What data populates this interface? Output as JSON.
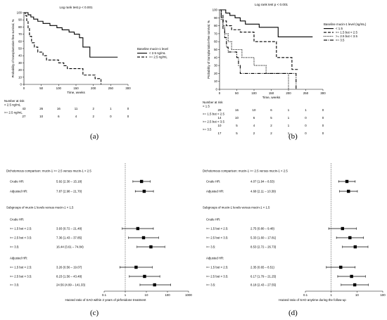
{
  "panels": {
    "a": {
      "label": "(a)",
      "chart_data": {
        "type": "line",
        "title": "Log rank test p < 0.001",
        "xlabel": "Time, weeks",
        "ylabel": "Probability of transplantation-free survival, %",
        "xlim": [
          0,
          300
        ],
        "ylim": [
          0,
          100
        ],
        "xticks": [
          "0",
          "50",
          "100",
          "150",
          "200",
          "250",
          "300"
        ],
        "yticks": [
          "0",
          "10",
          "20",
          "30",
          "40",
          "50",
          "60",
          "70",
          "80",
          "90",
          "100"
        ],
        "legend_title": "Baseline mucin-1 level",
        "legend_position": "right",
        "series": [
          {
            "name": "< 2.5 ng/mL",
            "style": "solid",
            "points": [
              [
                0,
                100
              ],
              [
                10,
                100
              ],
              [
                12,
                97
              ],
              [
                20,
                94
              ],
              [
                28,
                91
              ],
              [
                40,
                88
              ],
              [
                55,
                85
              ],
              [
                75,
                82
              ],
              [
                95,
                79
              ],
              [
                110,
                76
              ],
              [
                130,
                73
              ],
              [
                145,
                70
              ],
              [
                160,
                65
              ],
              [
                170,
                52
              ],
              [
                185,
                52
              ],
              [
                190,
                38
              ],
              [
                270,
                38
              ]
            ]
          },
          {
            "name": ">= 2.5 ng/mL",
            "style": "dashed",
            "points": [
              [
                0,
                100
              ],
              [
                4,
                96
              ],
              [
                8,
                89
              ],
              [
                12,
                78
              ],
              [
                16,
                67
              ],
              [
                22,
                58
              ],
              [
                30,
                52
              ],
              [
                40,
                45
              ],
              [
                55,
                40
              ],
              [
                65,
                34
              ],
              [
                90,
                34
              ],
              [
                100,
                30
              ],
              [
                115,
                26
              ],
              [
                125,
                22
              ],
              [
                165,
                22
              ],
              [
                170,
                13
              ],
              [
                200,
                13
              ],
              [
                205,
                8
              ],
              [
                220,
                8
              ],
              [
                222,
                0
              ]
            ]
          }
        ]
      },
      "risk_table": {
        "title": "Number at risk",
        "rows": [
          {
            "label": "< 2.5 ng/mL",
            "values": [
              "43",
              "26",
              "16",
              "11",
              "2",
              "1",
              "0"
            ]
          },
          {
            "label": ">= 2.5 ng/mL",
            "values": [
              "27",
              "10",
              "6",
              "4",
              "2",
              "0",
              "0"
            ]
          }
        ]
      }
    },
    "b": {
      "label": "(b)",
      "chart_data": {
        "type": "line",
        "title": "Log rank test p < 0.001",
        "xlabel": "Time, weeks",
        "ylabel": "Probability of transplantation-free survival, %",
        "xlim": [
          0,
          300
        ],
        "ylim": [
          0,
          100
        ],
        "xticks": [
          "0",
          "50",
          "100",
          "150",
          "200",
          "250",
          "300"
        ],
        "yticks": [
          "0",
          "10",
          "20",
          "30",
          "40",
          "50",
          "60",
          "70",
          "80",
          "90",
          "100"
        ],
        "legend_title": "Baseline mucin-1 level (ng/mL)",
        "legend_position": "right",
        "series": [
          {
            "name": "< 1.5",
            "style": "solid",
            "points": [
              [
                0,
                100
              ],
              [
                15,
                100
              ],
              [
                18,
                96
              ],
              [
                30,
                93
              ],
              [
                45,
                90
              ],
              [
                60,
                86
              ],
              [
                75,
                82
              ],
              [
                110,
                82
              ],
              [
                115,
                78
              ],
              [
                160,
                78
              ],
              [
                170,
                66
              ],
              [
                270,
                66
              ]
            ]
          },
          {
            "name": ">= 1.5 but < 2.5",
            "style": "dashed",
            "points": [
              [
                0,
                100
              ],
              [
                5,
                93
              ],
              [
                10,
                86
              ],
              [
                20,
                80
              ],
              [
                35,
                75
              ],
              [
                60,
                72
              ],
              [
                95,
                72
              ],
              [
                100,
                60
              ],
              [
                160,
                60
              ],
              [
                165,
                40
              ],
              [
                205,
                40
              ],
              [
                210,
                25
              ],
              [
                230,
                25
              ]
            ]
          },
          {
            "name": ">= 2.5 but < 3.5",
            "style": "dotted",
            "points": [
              [
                0,
                100
              ],
              [
                5,
                90
              ],
              [
                10,
                80
              ],
              [
                15,
                70
              ],
              [
                25,
                60
              ],
              [
                35,
                50
              ],
              [
                60,
                50
              ],
              [
                65,
                40
              ],
              [
                95,
                40
              ],
              [
                100,
                30
              ],
              [
                130,
                30
              ],
              [
                135,
                20
              ],
              [
                195,
                20
              ],
              [
                200,
                0
              ]
            ]
          },
          {
            "name": ">= 3.5",
            "style": "dashdot",
            "points": [
              [
                0,
                100
              ],
              [
                5,
                88
              ],
              [
                10,
                76
              ],
              [
                15,
                65
              ],
              [
                20,
                53
              ],
              [
                25,
                47
              ],
              [
                40,
                47
              ],
              [
                50,
                40
              ],
              [
                55,
                30
              ],
              [
                60,
                20
              ],
              [
                120,
                20
              ],
              [
                125,
                20
              ],
              [
                220,
                20
              ],
              [
                222,
                0
              ]
            ]
          }
        ]
      },
      "risk_table": {
        "title": "Number at risk",
        "rows": [
          {
            "label": "< 1.5",
            "values": [
              "29",
              "16",
              "10",
              "6",
              "1",
              "1",
              "0"
            ]
          },
          {
            "label": ">= 1.5 but < 2.5",
            "values": [
              "14",
              "10",
              "6",
              "5",
              "1",
              "0",
              "0"
            ]
          },
          {
            "label": ">= 2.5 but < 3.5",
            "values": [
              "10",
              "5",
              "4",
              "2",
              "1",
              "0",
              "0"
            ]
          },
          {
            "label": ">= 3.5",
            "values": [
              "17",
              "5",
              "2",
              "2",
              "1",
              "0",
              "0"
            ]
          }
        ]
      }
    },
    "c": {
      "label": "(c)",
      "chart_data": {
        "type": "forest",
        "xlabel": "Hazard ratio of SAO within 2 years of pirfenidone treatment",
        "xscale": "log",
        "xlim": [
          0.1,
          1000
        ],
        "xticks": [
          "0.1",
          "1",
          "10",
          "100",
          "1000"
        ],
        "reference_line": 1,
        "rows": [
          {
            "text": "Dichotomous comparison: mucin-1 >= 2.5 versus mucin-1 < 2.5",
            "kind": "heading"
          },
          {
            "text": "Crude HR:",
            "value": "5.92 (2.30 – 15.18)",
            "hr": 5.92,
            "lo": 2.3,
            "hi": 15.18,
            "kind": "estimate"
          },
          {
            "text": "Adjusted HR:",
            "value": "7.87 (2.98 – 21.70)",
            "hr": 7.87,
            "lo": 2.98,
            "hi": 21.7,
            "kind": "estimate"
          },
          {
            "text": "Subgroups of mucin-1 levels versus mucin-1 < 1.5",
            "kind": "heading"
          },
          {
            "text": "Crude HR:",
            "kind": "subheading"
          },
          {
            "text": ">= 1.5 but < 2.5:",
            "value": "3.93 (0.72 – 21.48)",
            "hr": 3.93,
            "lo": 0.72,
            "hi": 21.48,
            "kind": "estimate"
          },
          {
            "text": ">= 2.5 but < 3.5:",
            "value": "7.36 (1.43 – 37.85)",
            "hr": 7.36,
            "lo": 1.43,
            "hi": 37.85,
            "kind": "estimate"
          },
          {
            "text": ">= 3.5:",
            "value": "16.44 (3.61 – 74.84)",
            "hr": 16.44,
            "lo": 3.61,
            "hi": 74.84,
            "kind": "estimate"
          },
          {
            "text": "Adjusted HR:",
            "kind": "subheading"
          },
          {
            "text": ">= 1.5 but < 2.5:",
            "value": "3.26 (0.56 – 19.07)",
            "hr": 3.26,
            "lo": 0.56,
            "hi": 19.07,
            "kind": "estimate"
          },
          {
            "text": ">= 2.5 but < 3.5:",
            "value": "8.23 (1.56 – 43.48)",
            "hr": 8.23,
            "lo": 1.56,
            "hi": 43.48,
            "kind": "estimate"
          },
          {
            "text": ">= 3.5:",
            "value": "24.56 (4.99 – 141.33)",
            "hr": 24.56,
            "lo": 4.99,
            "hi": 141.33,
            "kind": "estimate"
          }
        ]
      }
    },
    "d": {
      "label": "(d)",
      "chart_data": {
        "type": "forest",
        "xlabel": "Hazard ratio of SAO anytime during the follow-up",
        "xscale": "log",
        "xlim": [
          0.1,
          100
        ],
        "xticks": [
          "0.1",
          "1",
          "10",
          "100"
        ],
        "reference_line": 1,
        "rows": [
          {
            "text": "Dichotomous comparison: mucin-1 >= 2.5 versus mucin-1 < 2.5",
            "kind": "heading"
          },
          {
            "text": "Crude HR:",
            "value": "4.07 (1.94 – 8.53)",
            "hr": 4.07,
            "lo": 1.94,
            "hi": 8.53,
            "kind": "estimate"
          },
          {
            "text": "Adjusted HR:",
            "value": "4.68 (2.11 – 10.39)",
            "hr": 4.68,
            "lo": 2.11,
            "hi": 10.39,
            "kind": "estimate"
          },
          {
            "text": "Subgroups of mucin-1 levels versus mucin-1 < 1.5",
            "kind": "heading"
          },
          {
            "text": "Crude HR:",
            "kind": "subheading"
          },
          {
            "text": ">= 1.5 but < 2.5:",
            "value": "2.75 (0.80 – 9.48)",
            "hr": 2.75,
            "lo": 0.8,
            "hi": 9.48,
            "kind": "estimate"
          },
          {
            "text": ">= 2.5 but < 3.5:",
            "value": "5.33 (1.60 – 17.81)",
            "hr": 5.33,
            "lo": 1.6,
            "hi": 17.81,
            "kind": "estimate"
          },
          {
            "text": ">= 3.5:",
            "value": "8.53 (2.72 – 26.73)",
            "hr": 8.53,
            "lo": 2.72,
            "hi": 26.73,
            "kind": "estimate"
          },
          {
            "text": "Adjusted HR:",
            "kind": "subheading"
          },
          {
            "text": ">= 1.5 but < 2.5:",
            "value": "2.35 (0.65 – 8.51)",
            "hr": 2.35,
            "lo": 0.65,
            "hi": 8.51,
            "kind": "estimate"
          },
          {
            "text": ">= 2.5 but < 3.5:",
            "value": "6.17 (1.79 – 21.25)",
            "hr": 6.17,
            "lo": 1.79,
            "hi": 21.25,
            "kind": "estimate"
          },
          {
            "text": ">= 3.5:",
            "value": "8.18 (2.43 – 27.55)",
            "hr": 8.18,
            "lo": 2.43,
            "hi": 27.55,
            "kind": "estimate"
          }
        ]
      }
    }
  }
}
